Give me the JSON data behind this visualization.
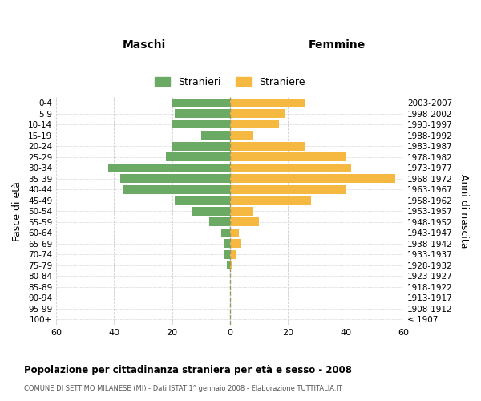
{
  "age_groups": [
    "100+",
    "95-99",
    "90-94",
    "85-89",
    "80-84",
    "75-79",
    "70-74",
    "65-69",
    "60-64",
    "55-59",
    "50-54",
    "45-49",
    "40-44",
    "35-39",
    "30-34",
    "25-29",
    "20-24",
    "15-19",
    "10-14",
    "5-9",
    "0-4"
  ],
  "birth_years": [
    "≤ 1907",
    "1908-1912",
    "1913-1917",
    "1918-1922",
    "1923-1927",
    "1928-1932",
    "1933-1937",
    "1938-1942",
    "1943-1947",
    "1948-1952",
    "1953-1957",
    "1958-1962",
    "1963-1967",
    "1968-1972",
    "1973-1977",
    "1978-1982",
    "1983-1987",
    "1988-1992",
    "1993-1997",
    "1998-2002",
    "2003-2007"
  ],
  "males": [
    0,
    0,
    0,
    0,
    0,
    1,
    2,
    2,
    3,
    7,
    13,
    19,
    37,
    38,
    42,
    22,
    20,
    10,
    20,
    19,
    20
  ],
  "females": [
    0,
    0,
    0,
    0,
    0,
    1,
    2,
    4,
    3,
    10,
    8,
    28,
    40,
    57,
    42,
    40,
    26,
    8,
    17,
    19,
    26
  ],
  "male_color": "#6aaa64",
  "female_color": "#f5b942",
  "background_color": "#ffffff",
  "grid_color": "#cccccc",
  "title": "Popolazione per cittadinanza straniera per età e sesso - 2008",
  "subtitle": "COMUNE DI SETTIMO MILANESE (MI) - Dati ISTAT 1° gennaio 2008 - Elaborazione TUTTITALIA.IT",
  "xlabel_left": "Maschi",
  "xlabel_right": "Femmine",
  "ylabel_left": "Fasce di età",
  "ylabel_right": "Anni di nascita",
  "legend_male": "Stranieri",
  "legend_female": "Straniere",
  "xlim": 60,
  "bar_height": 0.8
}
